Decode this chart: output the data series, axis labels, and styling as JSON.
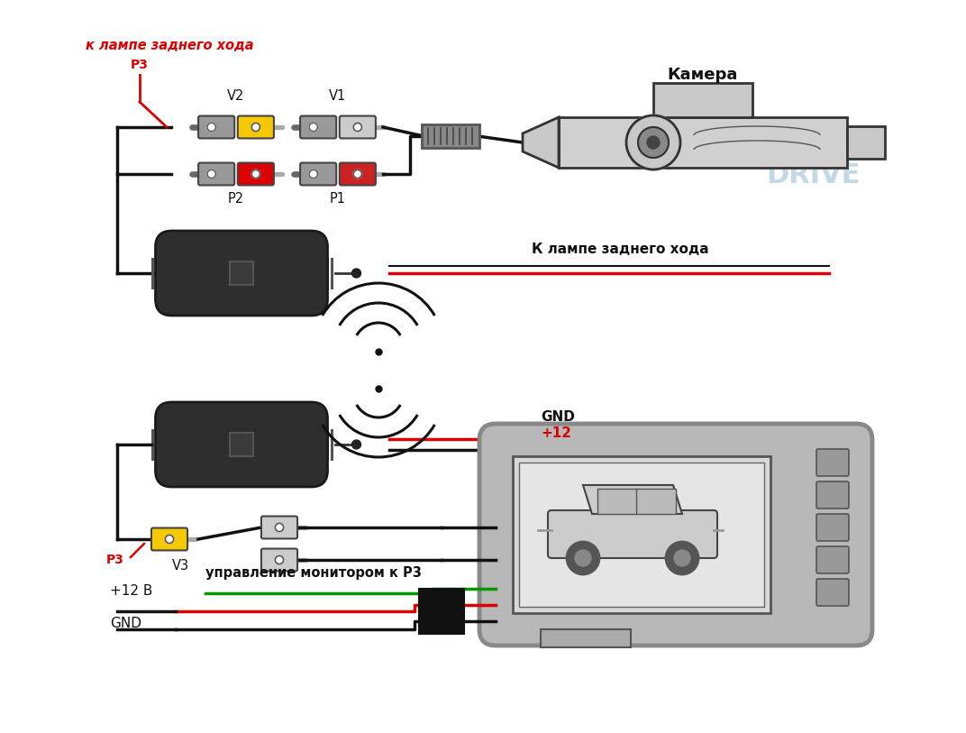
{
  "bg_color": "#ffffff",
  "text_color": "#000000",
  "red_color": "#dd0000",
  "green_color": "#009900",
  "yellow_color": "#f5c800",
  "wire_black": "#111111",
  "wire_red": "#cc0000",
  "gray_connector": "#888888",
  "dark_device": "#2a2a2a",
  "light_gray": "#c8c8c8",
  "labels": {
    "top_left": "к лампе заднего хода",
    "p3_top": "P3",
    "v2": "V2",
    "v1": "V1",
    "p2": "P2",
    "p1": "P1",
    "camera": "Камера",
    "lamp_label": "К лампе заднего хода",
    "gnd": "GND",
    "plus12": "+12",
    "v3": "V3",
    "p3_bot": "P3",
    "monitor_ctrl": "управление монитором к P3",
    "plus12v": "+12 В",
    "gnd_bot": "GND"
  },
  "figsize": [
    10.72,
    8.13
  ],
  "dpi": 100
}
